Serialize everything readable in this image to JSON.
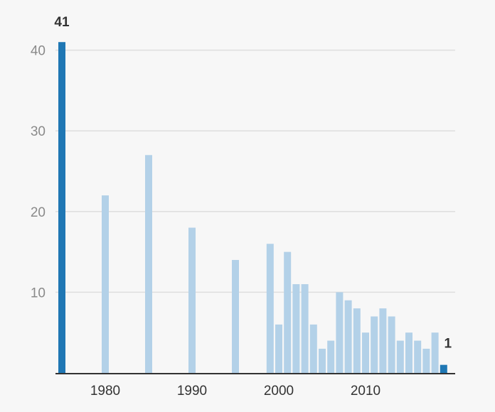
{
  "chart_data": {
    "type": "bar",
    "x": [
      1975,
      1980,
      1985,
      1990,
      1995,
      1999,
      2000,
      2001,
      2002,
      2003,
      2004,
      2005,
      2006,
      2007,
      2008,
      2009,
      2010,
      2011,
      2012,
      2013,
      2014,
      2015,
      2016,
      2017,
      2018,
      2019
    ],
    "values": [
      41,
      22,
      27,
      18,
      14,
      16,
      6,
      15,
      11,
      11,
      6,
      3,
      4,
      10,
      9,
      8,
      5,
      7,
      8,
      7,
      4,
      5,
      4,
      3,
      5,
      1
    ],
    "highlighted": [
      1975,
      2019
    ],
    "title": "",
    "xlabel": "",
    "ylabel": "",
    "ylim": [
      0,
      41
    ],
    "y_ticks": [
      10,
      20,
      30,
      40
    ],
    "x_ticks": [
      1980,
      1990,
      2000,
      2010
    ],
    "data_labels": [
      {
        "x": 1975,
        "text": "41"
      },
      {
        "x": 2019,
        "text": "1"
      }
    ],
    "grid": true,
    "colors": {
      "highlight": "#1f77b4",
      "bar": "#b3d1e8",
      "grid": "#dedede",
      "axis": "#333333",
      "background": "#f7f7f7"
    }
  }
}
